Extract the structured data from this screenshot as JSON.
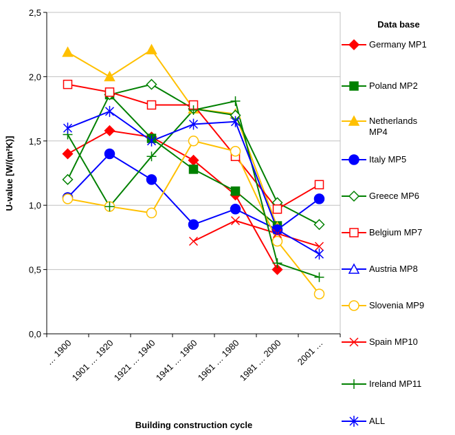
{
  "chart_data": {
    "type": "line",
    "x_label": "Building construction cycle",
    "y_label": "U-value [W/(m²K)]",
    "legend_title": "Data base",
    "categories": [
      "… 1900",
      "1901 … 1920",
      "1921 … 1940",
      "1941 … 1960",
      "1961 … 1980",
      "1981 … 2000",
      "2001 …"
    ],
    "ylim": [
      0,
      2.5
    ],
    "yticks": [
      {
        "value": 0,
        "label": "0,0"
      },
      {
        "value": 0.5,
        "label": "0,5"
      },
      {
        "value": 1,
        "label": "1,0"
      },
      {
        "value": 1.5,
        "label": "1,5"
      },
      {
        "value": 2,
        "label": "2,0"
      },
      {
        "value": 2.5,
        "label": "2,5"
      }
    ],
    "grid": true,
    "legend": "right",
    "series": [
      {
        "name": "Germany MP1",
        "color": "#ff0000",
        "marker": "diamond",
        "values": [
          1.4,
          1.58,
          1.53,
          1.35,
          1.08,
          0.5,
          null
        ]
      },
      {
        "name": "Poland MP2",
        "color": "#008000",
        "marker": "square",
        "values": [
          null,
          1.86,
          1.52,
          1.28,
          1.11,
          0.84,
          null
        ]
      },
      {
        "name": "Netherlands MP4",
        "color": "#ffc000",
        "marker": "triangle",
        "values": [
          2.19,
          2.0,
          2.21,
          1.75,
          1.71,
          0.83,
          null
        ]
      },
      {
        "name": "Italy MP5",
        "color": "#0000ff",
        "marker": "circle",
        "values": [
          1.06,
          1.4,
          1.2,
          0.85,
          0.97,
          0.81,
          1.05
        ]
      },
      {
        "name": "Greece MP6",
        "color": "#008000",
        "marker": "open-diamond",
        "values": [
          1.2,
          1.86,
          1.94,
          1.75,
          1.7,
          1.02,
          0.85
        ]
      },
      {
        "name": "Belgium MP7",
        "color": "#ff0000",
        "marker": "open-square",
        "values": [
          1.94,
          1.88,
          1.78,
          1.78,
          1.38,
          0.97,
          1.16
        ]
      },
      {
        "name": "Austria MP8",
        "color": "#0000ff",
        "marker": "open-triangle",
        "values": [
          null,
          null,
          null,
          null,
          null,
          null,
          null
        ]
      },
      {
        "name": "Slovenia MP9",
        "color": "#ffc000",
        "marker": "open-circle",
        "values": [
          1.05,
          0.99,
          0.94,
          1.5,
          1.42,
          0.72,
          0.31
        ]
      },
      {
        "name": "Spain MP10",
        "color": "#ff0000",
        "marker": "x",
        "values": [
          null,
          null,
          null,
          0.72,
          0.88,
          0.78,
          0.68
        ]
      },
      {
        "name": "Ireland MP11",
        "color": "#008000",
        "marker": "plus",
        "values": [
          1.55,
          0.99,
          1.38,
          1.74,
          1.81,
          0.55,
          0.44
        ]
      },
      {
        "name": "ALL",
        "color": "#0000ff",
        "marker": "asterisk",
        "values": [
          1.6,
          1.73,
          1.5,
          1.63,
          1.65,
          0.81,
          0.62
        ]
      }
    ]
  }
}
